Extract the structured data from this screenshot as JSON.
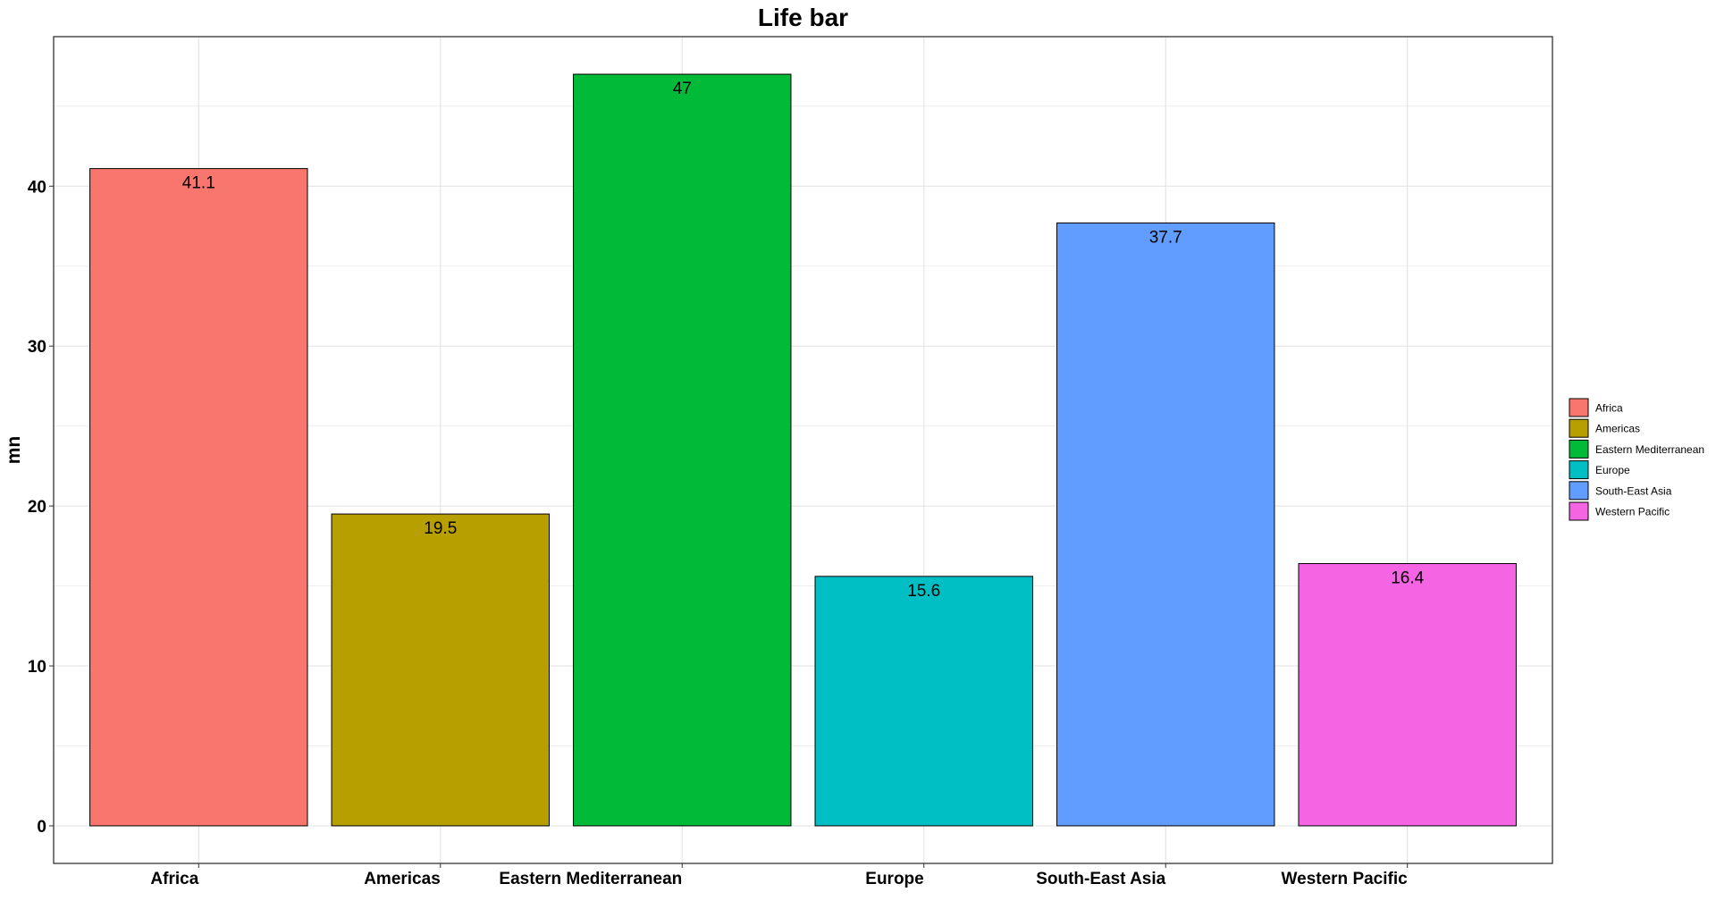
{
  "chart_data": {
    "type": "bar",
    "title": "Life bar",
    "xlabel": "",
    "ylabel": "mn",
    "categories": [
      "Africa",
      "Americas",
      "Eastern Mediterranean",
      "Europe",
      "South-East Asia",
      "Western Pacific"
    ],
    "values": [
      41.1,
      19.5,
      47,
      15.6,
      37.7,
      16.4
    ],
    "data_labels": [
      "41.1",
      "19.5",
      "47",
      "15.6",
      "37.7",
      "16.4"
    ],
    "colors": [
      "#F8766D",
      "#B79F00",
      "#00BA38",
      "#00BFC4",
      "#619CFF",
      "#F564E3"
    ],
    "yticks": [
      0,
      10,
      20,
      30,
      40
    ],
    "ylim": [
      -2.35,
      49.35
    ],
    "grid": true,
    "legend": {
      "position": "right",
      "entries": [
        "Africa",
        "Americas",
        "Eastern Mediterranean",
        "Europe",
        "South-East Asia",
        "Western Pacific"
      ]
    }
  }
}
